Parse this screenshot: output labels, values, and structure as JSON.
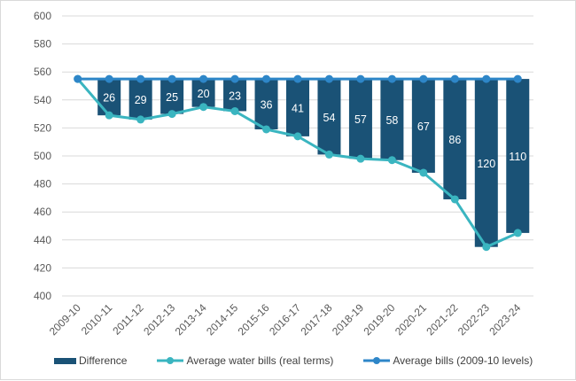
{
  "chart_data": {
    "type": "bar+line",
    "categories": [
      "2009-10",
      "2010-11",
      "2011-12",
      "2012-13",
      "2013-14",
      "2014-15",
      "2015-16",
      "2016-17",
      "2017-18",
      "2018-19",
      "2019-20",
      "2020-21",
      "2021-22",
      "2022-23",
      "2023-24"
    ],
    "series": [
      {
        "name": "Difference",
        "type": "bar",
        "color": "#1a5276",
        "values": [
          null,
          26,
          29,
          25,
          20,
          23,
          36,
          41,
          54,
          57,
          58,
          67,
          86,
          120,
          110
        ]
      },
      {
        "name": "Average water bills (real terms)",
        "type": "line",
        "color": "#3ab5c0",
        "values": [
          555,
          529,
          526,
          530,
          535,
          532,
          519,
          514,
          501,
          498,
          497,
          488,
          469,
          435,
          445
        ]
      },
      {
        "name": "Average bills (2009-10 levels)",
        "type": "line",
        "color": "#2e86c8",
        "values": [
          555,
          555,
          555,
          555,
          555,
          555,
          555,
          555,
          555,
          555,
          555,
          555,
          555,
          555,
          555
        ]
      }
    ],
    "yticks": [
      400,
      420,
      440,
      460,
      480,
      500,
      520,
      540,
      560,
      580,
      600
    ],
    "ylim": [
      400,
      600
    ],
    "grid": true,
    "legend": "bottom"
  }
}
